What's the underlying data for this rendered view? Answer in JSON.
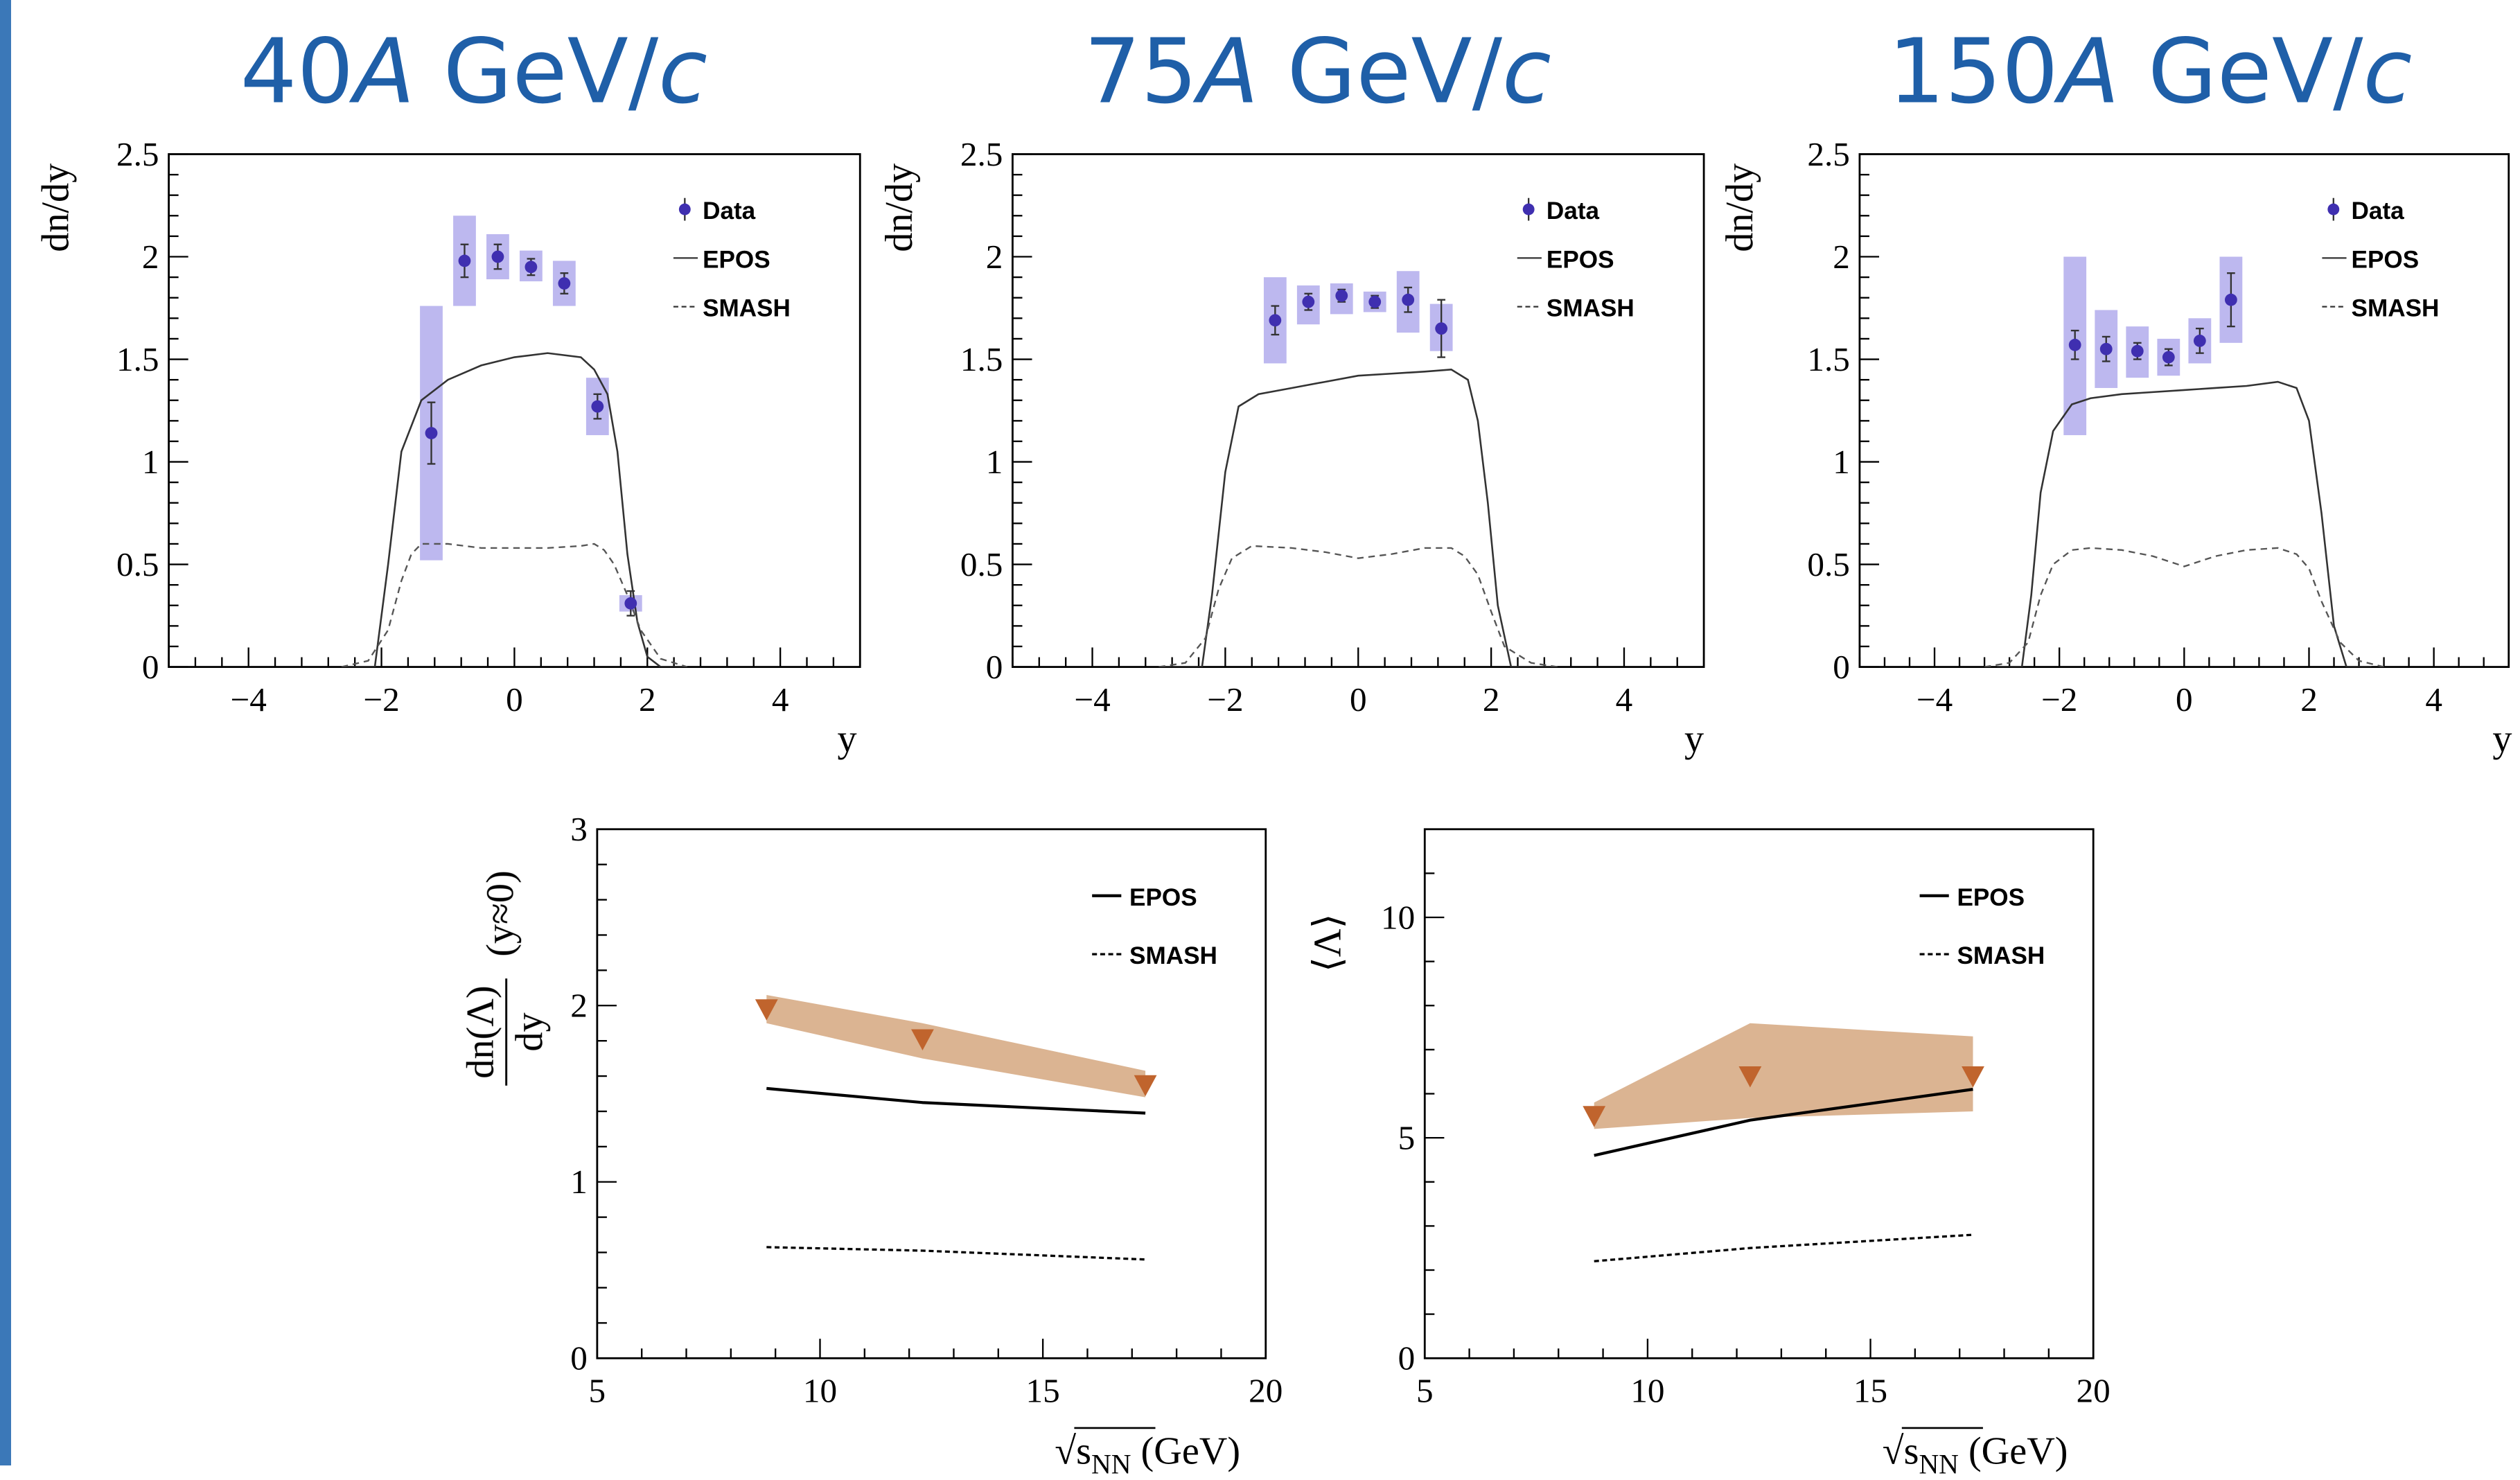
{
  "colors": {
    "accent_bar": "#3b78b8",
    "title": "#1f5fa8",
    "data_point": "#3f2fb0",
    "data_band": "#b9b4ee",
    "summary_marker": "#c0642d",
    "summary_band": "#d9b08c"
  },
  "titles": [
    {
      "num": "40",
      "unit_a": "A",
      "mid": " GeV/",
      "unit_c": "c"
    },
    {
      "num": "75",
      "unit_a": "A",
      "mid": " GeV/",
      "unit_c": "c"
    },
    {
      "num": "150",
      "unit_a": "A",
      "mid": " GeV/",
      "unit_c": "c"
    }
  ],
  "chart_data": [
    {
      "type": "scatter",
      "title": "40A GeV/c",
      "xlabel": "y",
      "ylabel": "dn/dy",
      "xlim": [
        -5.2,
        5.2
      ],
      "ylim": [
        0,
        2.5
      ],
      "xticks": [
        "−4",
        "−2",
        "0",
        "2",
        "4"
      ],
      "xtick_values": [
        -4,
        -2,
        0,
        2,
        4
      ],
      "yticks": [
        "0",
        "0.5",
        "1",
        "1.5",
        "2",
        "2.5"
      ],
      "ytick_values": [
        0,
        0.5,
        1,
        1.5,
        2,
        2.5
      ],
      "legend": [
        "Data",
        "EPOS",
        "SMASH"
      ],
      "data": {
        "x": [
          -1.25,
          -0.75,
          -0.25,
          0.25,
          0.75,
          1.25,
          1.75
        ],
        "y": [
          1.14,
          1.98,
          2.0,
          1.95,
          1.87,
          1.27,
          0.31
        ],
        "stat_err": [
          0.15,
          0.08,
          0.06,
          0.04,
          0.05,
          0.06,
          0.06
        ],
        "sys_lo": [
          0.52,
          1.76,
          1.89,
          1.88,
          1.76,
          1.13,
          0.27
        ],
        "sys_hi": [
          1.76,
          2.2,
          2.11,
          2.03,
          1.98,
          1.41,
          0.35
        ]
      },
      "series": [
        {
          "name": "EPOS",
          "x": [
            -2.6,
            -2.1,
            -1.9,
            -1.7,
            -1.4,
            -1.0,
            -0.5,
            0,
            0.5,
            1.0,
            1.2,
            1.4,
            1.55,
            1.7,
            1.85,
            2.0,
            2.2,
            2.6
          ],
          "y": [
            0,
            0,
            0.5,
            1.05,
            1.3,
            1.4,
            1.47,
            1.51,
            1.53,
            1.51,
            1.45,
            1.33,
            1.05,
            0.55,
            0.22,
            0.05,
            0,
            0
          ]
        },
        {
          "name": "SMASH",
          "x": [
            -2.6,
            -2.2,
            -1.9,
            -1.7,
            -1.55,
            -1.4,
            -1.0,
            -0.5,
            0,
            0.5,
            1.0,
            1.2,
            1.35,
            1.5,
            1.7,
            1.9,
            2.2,
            2.6
          ],
          "y": [
            0,
            0.03,
            0.18,
            0.42,
            0.55,
            0.6,
            0.6,
            0.58,
            0.58,
            0.58,
            0.59,
            0.6,
            0.57,
            0.5,
            0.35,
            0.18,
            0.04,
            0
          ]
        }
      ]
    },
    {
      "type": "scatter",
      "title": "75A GeV/c",
      "xlabel": "y",
      "ylabel": "dn/dy",
      "xlim": [
        -5.2,
        5.2
      ],
      "ylim": [
        0,
        2.5
      ],
      "xticks": [
        "−4",
        "−2",
        "0",
        "2",
        "4"
      ],
      "xtick_values": [
        -4,
        -2,
        0,
        2,
        4
      ],
      "yticks": [
        "0",
        "0.5",
        "1",
        "1.5",
        "2",
        "2.5"
      ],
      "ytick_values": [
        0,
        0.5,
        1,
        1.5,
        2,
        2.5
      ],
      "legend": [
        "Data",
        "EPOS",
        "SMASH"
      ],
      "data": {
        "x": [
          -1.25,
          -0.75,
          -0.25,
          0.25,
          0.75,
          1.25
        ],
        "y": [
          1.69,
          1.78,
          1.81,
          1.78,
          1.79,
          1.65
        ],
        "stat_err": [
          0.07,
          0.04,
          0.03,
          0.03,
          0.06,
          0.14
        ],
        "sys_lo": [
          1.48,
          1.67,
          1.72,
          1.73,
          1.63,
          1.54
        ],
        "sys_hi": [
          1.9,
          1.86,
          1.87,
          1.83,
          1.93,
          1.77
        ]
      },
      "series": [
        {
          "name": "EPOS",
          "x": [
            -3.0,
            -2.35,
            -2.2,
            -2.0,
            -1.8,
            -1.5,
            -1.0,
            -0.5,
            0,
            0.5,
            1.0,
            1.4,
            1.65,
            1.8,
            1.95,
            2.1,
            2.3,
            3.0
          ],
          "y": [
            0,
            0,
            0.35,
            0.95,
            1.27,
            1.33,
            1.36,
            1.39,
            1.42,
            1.43,
            1.44,
            1.45,
            1.4,
            1.2,
            0.8,
            0.3,
            0,
            0
          ]
        },
        {
          "name": "SMASH",
          "x": [
            -3.0,
            -2.6,
            -2.3,
            -2.1,
            -1.9,
            -1.6,
            -1.0,
            -0.5,
            0,
            0.5,
            1.0,
            1.4,
            1.6,
            1.8,
            2.0,
            2.2,
            2.6,
            3.0
          ],
          "y": [
            0,
            0.02,
            0.14,
            0.38,
            0.53,
            0.59,
            0.58,
            0.56,
            0.53,
            0.55,
            0.58,
            0.58,
            0.54,
            0.45,
            0.27,
            0.1,
            0.02,
            0
          ]
        }
      ]
    },
    {
      "type": "scatter",
      "title": "150A GeV/c",
      "xlabel": "y",
      "ylabel": "dn/dy",
      "xlim": [
        -5.2,
        5.2
      ],
      "ylim": [
        0,
        2.5
      ],
      "xticks": [
        "−4",
        "−2",
        "0",
        "2",
        "4"
      ],
      "xtick_values": [
        -4,
        -2,
        0,
        2,
        4
      ],
      "yticks": [
        "0",
        "0.5",
        "1",
        "1.5",
        "2",
        "2.5"
      ],
      "ytick_values": [
        0,
        0.5,
        1,
        1.5,
        2,
        2.5
      ],
      "legend": [
        "Data",
        "EPOS",
        "SMASH"
      ],
      "data": {
        "x": [
          -1.75,
          -1.25,
          -0.75,
          -0.25,
          0.25,
          0.75
        ],
        "y": [
          1.57,
          1.55,
          1.54,
          1.51,
          1.59,
          1.79
        ],
        "stat_err": [
          0.07,
          0.06,
          0.04,
          0.04,
          0.06,
          0.13
        ],
        "sys_lo": [
          1.13,
          1.36,
          1.41,
          1.42,
          1.48,
          1.58
        ],
        "sys_hi": [
          2.0,
          1.74,
          1.66,
          1.6,
          1.7,
          2.0
        ]
      },
      "series": [
        {
          "name": "EPOS",
          "x": [
            -3.0,
            -2.6,
            -2.45,
            -2.3,
            -2.1,
            -1.8,
            -1.5,
            -1.0,
            -0.5,
            0,
            0.5,
            1.0,
            1.5,
            1.8,
            2.0,
            2.2,
            2.4,
            2.6,
            3.0
          ],
          "y": [
            0,
            0,
            0.35,
            0.85,
            1.15,
            1.28,
            1.31,
            1.33,
            1.34,
            1.35,
            1.36,
            1.37,
            1.39,
            1.36,
            1.2,
            0.75,
            0.2,
            0,
            0
          ]
        },
        {
          "name": "SMASH",
          "x": [
            -3.2,
            -2.8,
            -2.5,
            -2.3,
            -2.1,
            -1.8,
            -1.5,
            -1.0,
            -0.5,
            0,
            0.5,
            1.0,
            1.5,
            1.8,
            2.0,
            2.2,
            2.5,
            2.8,
            3.2
          ],
          "y": [
            0,
            0.02,
            0.12,
            0.35,
            0.5,
            0.57,
            0.58,
            0.57,
            0.54,
            0.49,
            0.54,
            0.57,
            0.58,
            0.55,
            0.48,
            0.32,
            0.12,
            0.03,
            0
          ]
        }
      ]
    },
    {
      "type": "line",
      "xlabel": "√s_NN (GeV)",
      "xlabel_parts": {
        "sqrt": "√",
        "s": "s",
        "sub": "NN",
        "unit": " (GeV)"
      },
      "ylabel_parts": {
        "num": "dn(Λ)",
        "den": "dy",
        "cond": "(y≈0)"
      },
      "xlim": [
        5,
        20
      ],
      "ylim": [
        0,
        3
      ],
      "xticks": [
        "5",
        "10",
        "15",
        "20"
      ],
      "xtick_values": [
        5,
        10,
        15,
        20
      ],
      "yticks": [
        "0",
        "1",
        "2",
        "3"
      ],
      "ytick_values": [
        0,
        1,
        2,
        3
      ],
      "legend": [
        "EPOS",
        "SMASH"
      ],
      "data": {
        "x": [
          8.8,
          12.3,
          17.3
        ],
        "y": [
          1.98,
          1.81,
          1.55
        ]
      },
      "band": {
        "x": [
          8.8,
          12.3,
          17.3
        ],
        "lo": [
          1.9,
          1.7,
          1.48
        ],
        "hi": [
          2.06,
          1.9,
          1.63
        ]
      },
      "series": [
        {
          "name": "EPOS",
          "x": [
            8.8,
            12.3,
            17.3
          ],
          "y": [
            1.53,
            1.45,
            1.39
          ]
        },
        {
          "name": "SMASH",
          "x": [
            8.8,
            12.3,
            17.3
          ],
          "y": [
            0.63,
            0.61,
            0.56
          ]
        }
      ]
    },
    {
      "type": "line",
      "xlabel": "√s_NN (GeV)",
      "xlabel_parts": {
        "sqrt": "√",
        "s": "s",
        "sub": "NN",
        "unit": " (GeV)"
      },
      "ylabel_parts": {
        "text": "⟨Λ⟩"
      },
      "xlim": [
        5,
        20
      ],
      "ylim": [
        0,
        12
      ],
      "xticks": [
        "5",
        "10",
        "15",
        "20"
      ],
      "xtick_values": [
        5,
        10,
        15,
        20
      ],
      "yticks": [
        "0",
        "5",
        "10"
      ],
      "ytick_values": [
        0,
        5,
        10
      ],
      "legend": [
        "EPOS",
        "SMASH"
      ],
      "data": {
        "x": [
          8.8,
          12.3,
          17.3
        ],
        "y": [
          5.5,
          6.4,
          6.4
        ]
      },
      "band": {
        "x": [
          8.8,
          12.3,
          17.3
        ],
        "lo": [
          5.2,
          5.45,
          5.6
        ],
        "hi": [
          5.8,
          7.6,
          7.3
        ]
      },
      "series": [
        {
          "name": "EPOS",
          "x": [
            8.8,
            12.3,
            17.3
          ],
          "y": [
            4.6,
            5.4,
            6.1
          ]
        },
        {
          "name": "SMASH",
          "x": [
            8.8,
            12.3,
            17.3
          ],
          "y": [
            2.2,
            2.5,
            2.8
          ]
        }
      ]
    }
  ]
}
